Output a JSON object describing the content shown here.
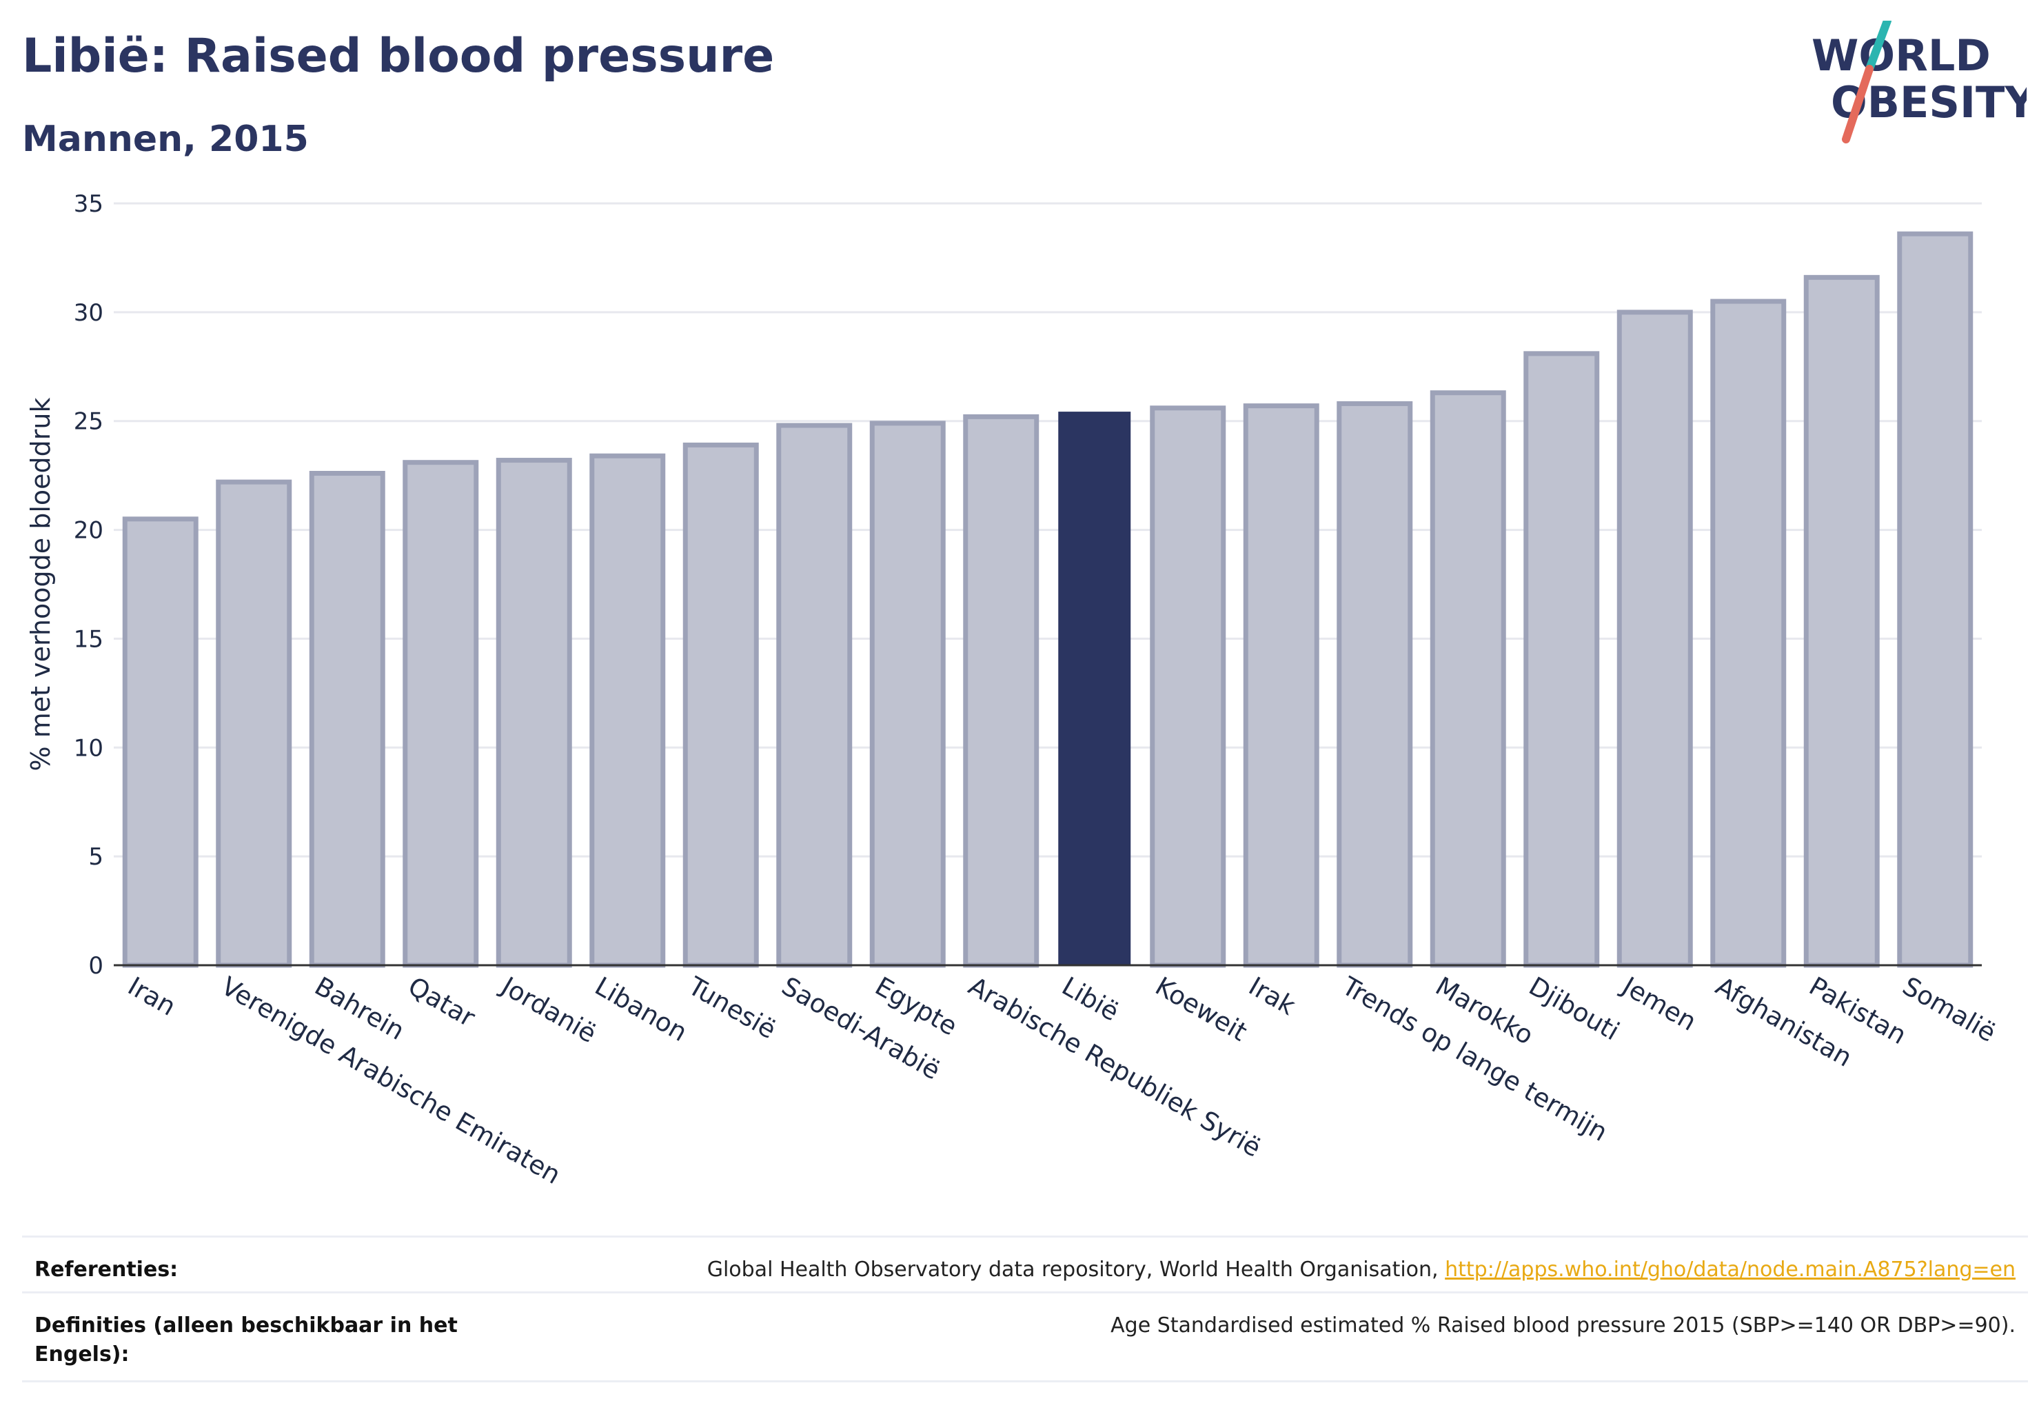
{
  "header": {
    "title": "Libië: Raised blood pressure",
    "subtitle": "Mannen, 2015"
  },
  "logo": {
    "line1": "WORLD",
    "line2": "OBESITY"
  },
  "chart_data": {
    "type": "bar",
    "title": "Libië: Raised blood pressure",
    "subtitle": "Mannen, 2015",
    "ylabel": "% met verhoogde bloeddruk",
    "xlabel": "",
    "ylim": [
      0,
      35
    ],
    "yticks": [
      0,
      5,
      10,
      15,
      20,
      25,
      30,
      35
    ],
    "grid": true,
    "highlight": "Libië",
    "categories": [
      "Iran",
      "Verenigde Arabische Emiraten",
      "Bahrein",
      "Qatar",
      "Jordanië",
      "Libanon",
      "Tunesië",
      "Saoedi-Arabië",
      "Egypte",
      "Arabische Republiek Syrië",
      "Libië",
      "Koeweit",
      "Irak",
      "Trends op lange termijn",
      "Marokko",
      "Djibouti",
      "Jemen",
      "Afghanistan",
      "Pakistan",
      "Somalië"
    ],
    "values": [
      20.5,
      22.2,
      22.6,
      23.1,
      23.2,
      23.4,
      23.9,
      24.8,
      24.9,
      25.2,
      25.4,
      25.6,
      25.7,
      25.8,
      26.3,
      28.1,
      30.0,
      30.5,
      31.6,
      33.6
    ],
    "colors": {
      "bar": "#bfc2d0",
      "bar_edge": "#9da2b8",
      "highlight": "#2b3561",
      "grid": "#e7e8ee",
      "axis": "#333333"
    }
  },
  "footer": {
    "references_label": "Referenties:",
    "references_text": "Global Health Observatory data repository, World Health Organisation,",
    "references_link": "http://apps.who.int/gho/data/node.main.A875?lang=en",
    "definitions_label": "Definities (alleen beschikbaar in het Engels):",
    "definitions_text": "Age Standardised estimated % Raised blood pressure 2015 (SBP>=140 OR DBP>=90)."
  }
}
